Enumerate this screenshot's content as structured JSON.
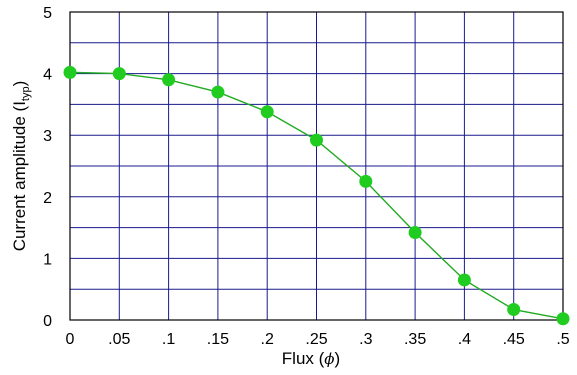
{
  "chart_data": {
    "type": "line",
    "title": "",
    "xlabel": "Flux",
    "xlabel_symbol": "ϕ",
    "ylabel": "Current amplitude",
    "ylabel_symbol": "I",
    "ylabel_subscript": "typ",
    "xlim": [
      0,
      0.5
    ],
    "ylim": [
      0,
      5
    ],
    "x_tick_labels": [
      "0",
      ".05",
      ".1",
      ".15",
      ".2",
      ".25",
      ".3",
      ".35",
      ".4",
      ".45",
      ".5"
    ],
    "y_tick_labels": [
      "0",
      "1",
      "2",
      "3",
      "4",
      "5"
    ],
    "grid": true,
    "series": [
      {
        "x": [
          0,
          0.05,
          0.1,
          0.15,
          0.2,
          0.25,
          0.3,
          0.35,
          0.4,
          0.45,
          0.5
        ],
        "values": [
          4.02,
          4.0,
          3.9,
          3.7,
          3.38,
          2.92,
          2.25,
          1.42,
          0.65,
          0.17,
          0.02
        ]
      }
    ],
    "colors": {
      "grid": "#1a1a8c",
      "line": "#22aa22",
      "marker": "#1fcc1f"
    }
  }
}
